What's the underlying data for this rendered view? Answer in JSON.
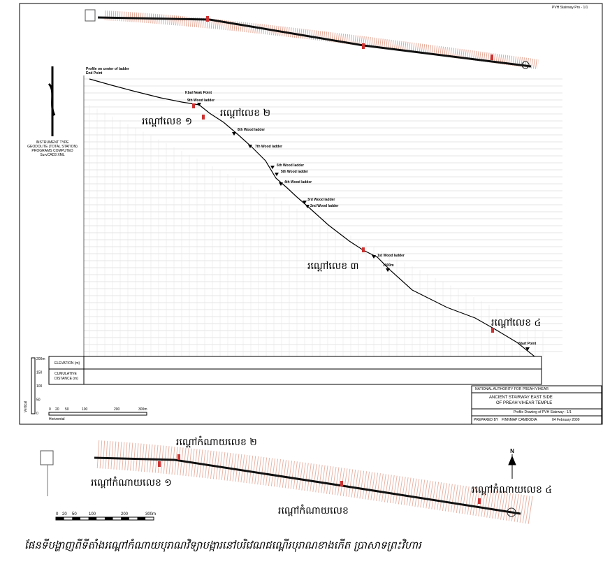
{
  "sheet_label": "PVH Stairway Pro - 1/1",
  "profile": {
    "title": "Profile on center of ladder",
    "end_point": "End Point",
    "start_point": "Start Point",
    "kbal_neak": "Kbal Neak Point",
    "ladders": [
      "9th Wood ladder",
      "8th Wood ladder",
      "7th Wood ladder",
      "6th Wood ladder",
      "5th Wood ladder",
      "4th Wood ladder",
      "3rd Wood ladder",
      "2nd Wood ladder",
      "1st Wood ladder"
    ],
    "distance_mark": "1000m",
    "pits": [
      "រណ្តៅលេខ ១",
      "រណ្តៅលេខ ២",
      "រណ្តៅលេខ ៣",
      "រណ្តៅលេខ ៤"
    ]
  },
  "instrument": [
    "INSTRUMENT TYPE",
    "GEODOLITE (TOTAL STATION)",
    "PROGRAMS COMPUTED",
    "SurvCAD3 XML"
  ],
  "table": {
    "elevation": "ELEVATION (m)",
    "distance_1": "CUMULATIVE",
    "distance_2": "DISTANCE (m)"
  },
  "vertical_scale": {
    "labels": [
      "200m",
      "150",
      "100",
      "50",
      "0"
    ],
    "caption": "Vertical"
  },
  "horizontal_scale": {
    "labels": [
      "0",
      "20",
      "50",
      "100",
      "200",
      "300m"
    ],
    "caption": "Horizontal"
  },
  "title_block": {
    "authority": "NATIONAL AUTHORITY FOR PREAH VIHEAR",
    "title_1": "ANCIENT STAIRWAY EAST SIDE",
    "title_2": "OF PREAH VIHEAR TEMPLE",
    "drawing": "Profile Drawing of PVH Stairway : 1/1",
    "prepared": "PREPARED BY",
    "company": "FINNMAP CAMBODIA",
    "date": "04 February 2009"
  },
  "plan_map": {
    "pits": [
      "រណ្តៅកំណាយលេខ ២",
      "រណ្តៅកំណាយលេខ ១",
      "រណ្តៅកំណាយលេខ",
      "រណ្តៅកំណាយលេខ ៤"
    ],
    "north": "N",
    "scale": [
      "0",
      "20",
      "50",
      "100",
      "200",
      "300m"
    ]
  },
  "caption": "ផែនទីបង្ហាញពីទីតាំងរណ្តៅកំណាយបុរាណវិទ្យាបង្ការនៅបរិវេណជណ្តើរបុរាណខាងកើត ប្រាសាទព្រះវិហារ"
}
